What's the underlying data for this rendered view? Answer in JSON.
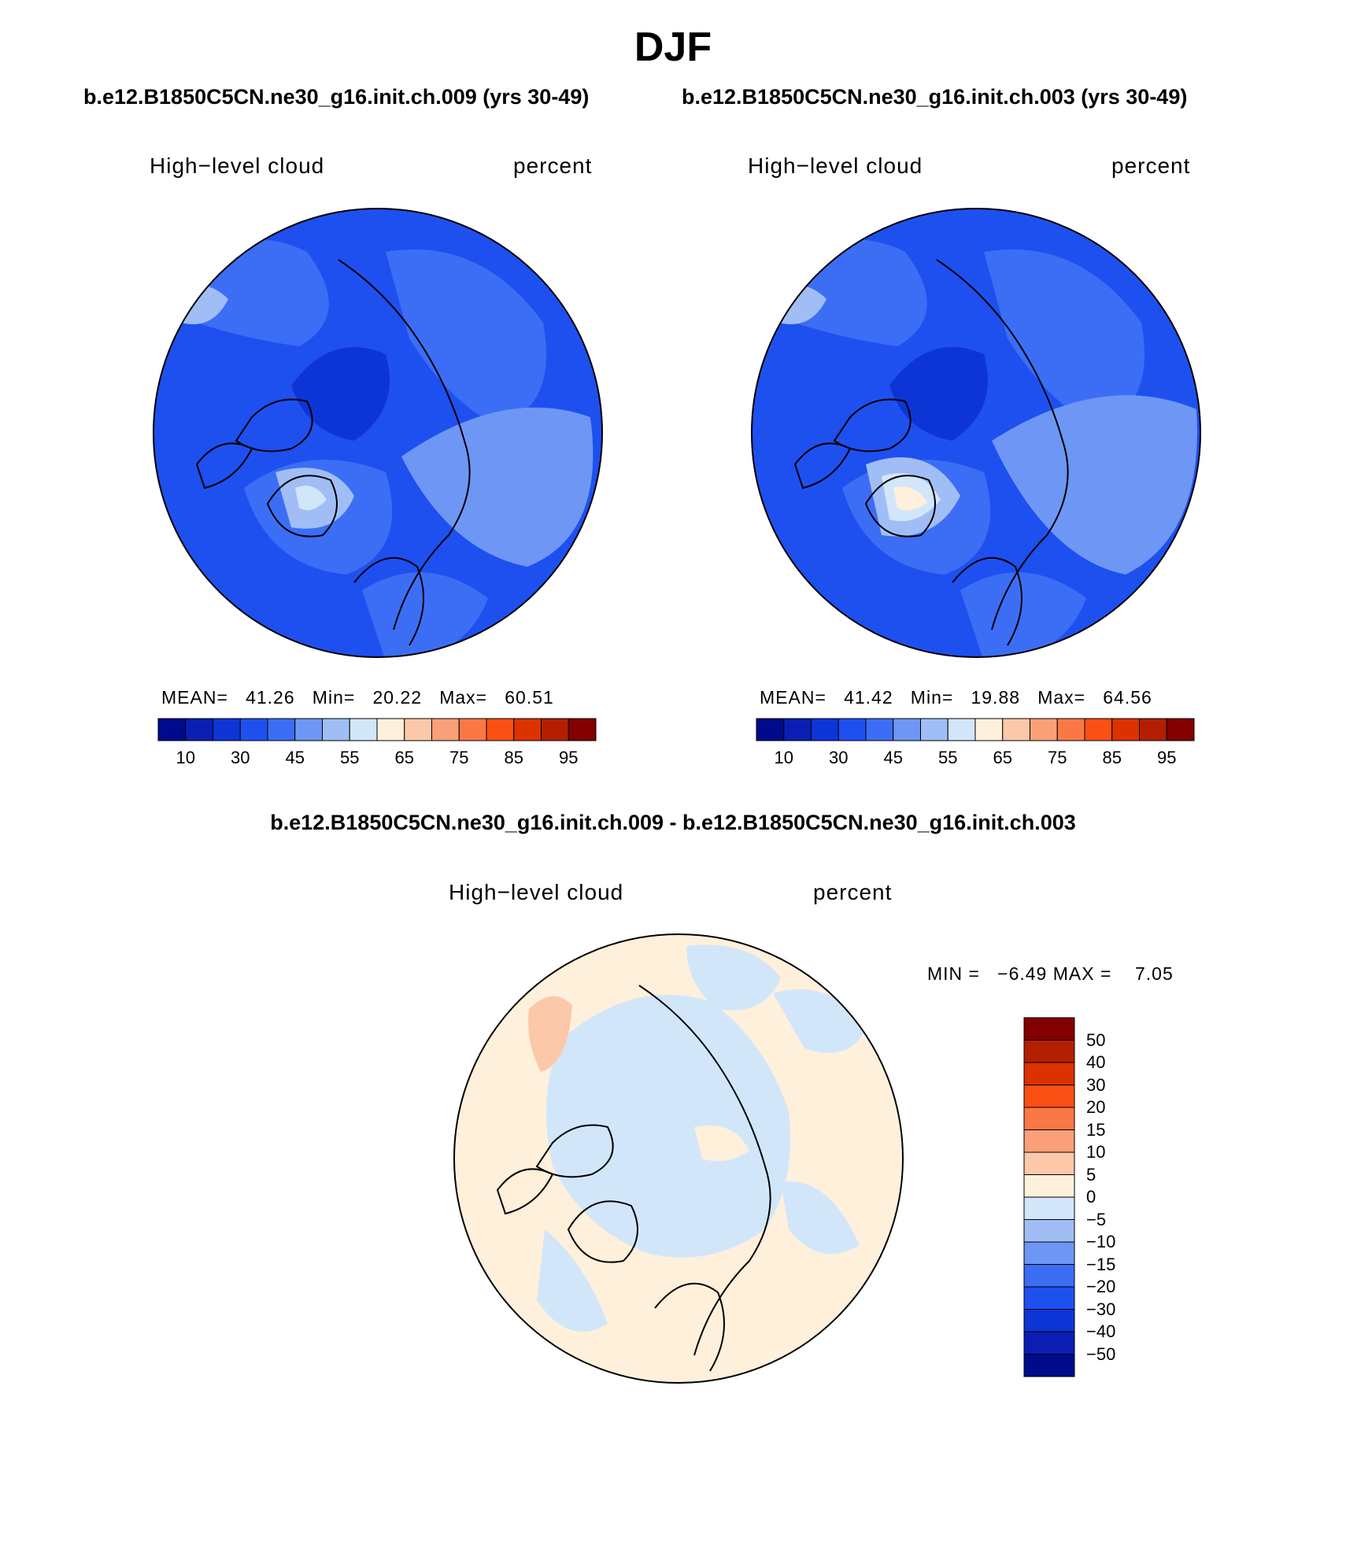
{
  "title": "DJF",
  "case_titles": [
    "b.e12.B1850C5CN.ne30_g16.init.ch.009 (yrs 30-49)",
    "b.e12.B1850C5CN.ne30_g16.init.ch.003 (yrs 30-49)"
  ],
  "diff_title": "b.e12.B1850C5CN.ne30_g16.init.ch.009 - b.e12.B1850C5CN.ne30_g16.init.ch.003",
  "panels": [
    {
      "variable": "High−level cloud",
      "units": "percent",
      "stats": {
        "mean_label": "MEAN=",
        "mean": "41.26",
        "min_label": "Min=",
        "min": "20.22",
        "max_label": "Max=",
        "max": "60.51"
      }
    },
    {
      "variable": "High−level cloud",
      "units": "percent",
      "stats": {
        "mean_label": "MEAN=",
        "mean": "41.42",
        "min_label": "Min=",
        "min": "19.88",
        "max_label": "Max=",
        "max": "64.56"
      }
    }
  ],
  "diff_panel": {
    "variable": "High−level cloud",
    "units": "percent",
    "stats": {
      "min_label": "MIN =",
      "min": "−6.49",
      "max_label": "MAX =",
      "max": "7.05"
    }
  },
  "colorbar_abs": {
    "colors": [
      "#000a8c",
      "#0a1eb4",
      "#0d35d6",
      "#1e50f0",
      "#3c6ef5",
      "#6e96f5",
      "#a0bef5",
      "#d2e6fa",
      "#fff0dc",
      "#fcc8aa",
      "#faa078",
      "#fa7846",
      "#fa5014",
      "#dc3200",
      "#b41e00",
      "#820000"
    ],
    "tick_labels": [
      "10",
      "30",
      "45",
      "55",
      "65",
      "75",
      "85",
      "95"
    ]
  },
  "colorbar_diff": {
    "colors": [
      "#000a8c",
      "#0a1eb4",
      "#0d35d6",
      "#1e50f0",
      "#3c6ef5",
      "#6e96f5",
      "#a0bef5",
      "#d2e6fa",
      "#fff0dc",
      "#fcc8aa",
      "#faa078",
      "#fa7846",
      "#fa5014",
      "#dc3200",
      "#b41e00",
      "#820000"
    ],
    "tick_labels": [
      "50",
      "40",
      "30",
      "20",
      "15",
      "10",
      "5",
      "0",
      "−5",
      "−10",
      "−15",
      "−20",
      "−30",
      "−40",
      "−50"
    ]
  },
  "map_colors": {
    "abs_base": "#1e50f0",
    "abs_dark": "#0d35d6",
    "abs_mid": "#3c6ef5",
    "abs_light": "#6e96f5",
    "abs_lighter": "#a0bef5",
    "abs_lightest": "#d2e6fa",
    "abs_warm": "#fff0dc",
    "diff_pos": "#fff0dc",
    "diff_neg": "#d2e6fa",
    "diff_pos2": "#fcc8aa"
  }
}
